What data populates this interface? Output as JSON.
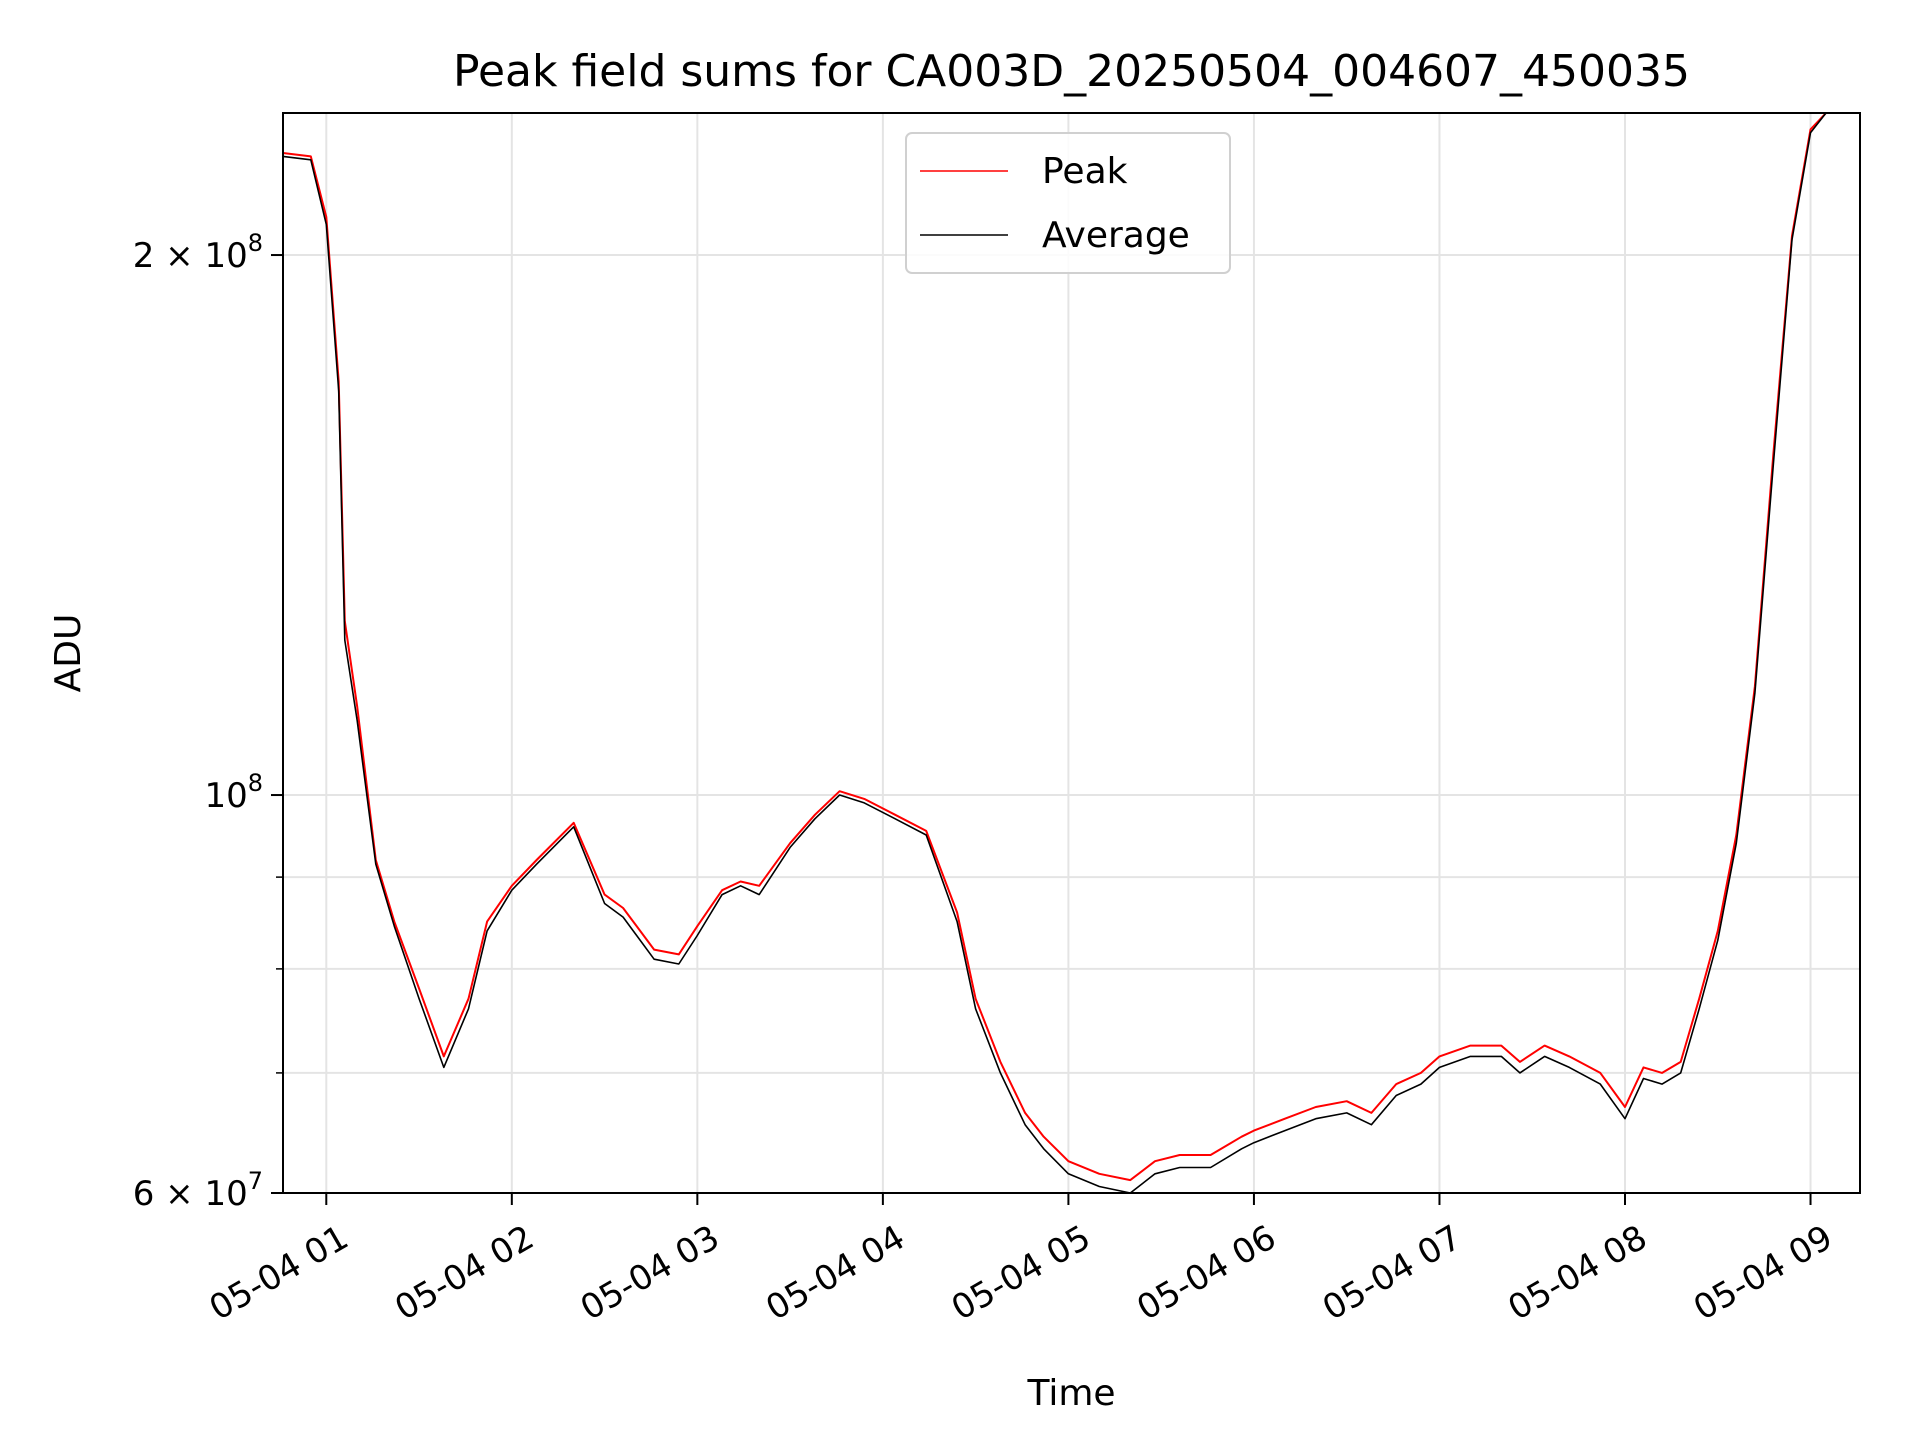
{
  "chart_data": {
    "type": "line",
    "title": "Peak field sums for CA003D_20250504_004607_450035",
    "xlabel": "Time",
    "ylabel": "ADU",
    "yscale": "log",
    "xlim": [
      "2025-05-04 00:46",
      "2025-05-04 09:16"
    ],
    "ylim": [
      60000000,
      240000000
    ],
    "grid": true,
    "legend_position": "upper center",
    "x_ticks": [
      {
        "value": "2025-05-04 01:00",
        "label": "05-04 01"
      },
      {
        "value": "2025-05-04 02:00",
        "label": "05-04 02"
      },
      {
        "value": "2025-05-04 03:00",
        "label": "05-04 03"
      },
      {
        "value": "2025-05-04 04:00",
        "label": "05-04 04"
      },
      {
        "value": "2025-05-04 05:00",
        "label": "05-04 05"
      },
      {
        "value": "2025-05-04 06:00",
        "label": "05-04 06"
      },
      {
        "value": "2025-05-04 07:00",
        "label": "05-04 07"
      },
      {
        "value": "2025-05-04 08:00",
        "label": "05-04 08"
      },
      {
        "value": "2025-05-04 09:00",
        "label": "05-04 09"
      }
    ],
    "y_ticks": [
      {
        "value": 60000000,
        "base": "6 × 10",
        "exp": "7"
      },
      {
        "value": 100000000,
        "base": "10",
        "exp": "8"
      },
      {
        "value": 200000000,
        "base": "2 × 10",
        "exp": "8"
      }
    ],
    "y_minor_ticks": [
      70000000,
      80000000,
      90000000
    ],
    "x": [
      "2025-05-04 00:46",
      "2025-05-04 00:55",
      "2025-05-04 01:00",
      "2025-05-04 01:04",
      "2025-05-04 01:06",
      "2025-05-04 01:10",
      "2025-05-04 01:16",
      "2025-05-04 01:22",
      "2025-05-04 01:30",
      "2025-05-04 01:38",
      "2025-05-04 01:46",
      "2025-05-04 01:52",
      "2025-05-04 02:00",
      "2025-05-04 02:08",
      "2025-05-04 02:20",
      "2025-05-04 02:30",
      "2025-05-04 02:36",
      "2025-05-04 02:46",
      "2025-05-04 02:54",
      "2025-05-04 03:00",
      "2025-05-04 03:08",
      "2025-05-04 03:14",
      "2025-05-04 03:20",
      "2025-05-04 03:30",
      "2025-05-04 03:38",
      "2025-05-04 03:46",
      "2025-05-04 03:54",
      "2025-05-04 04:04",
      "2025-05-04 04:14",
      "2025-05-04 04:24",
      "2025-05-04 04:30",
      "2025-05-04 04:38",
      "2025-05-04 04:46",
      "2025-05-04 04:52",
      "2025-05-04 05:00",
      "2025-05-04 05:10",
      "2025-05-04 05:20",
      "2025-05-04 05:28",
      "2025-05-04 05:36",
      "2025-05-04 05:46",
      "2025-05-04 05:56",
      "2025-05-04 06:00",
      "2025-05-04 06:10",
      "2025-05-04 06:20",
      "2025-05-04 06:30",
      "2025-05-04 06:38",
      "2025-05-04 06:46",
      "2025-05-04 06:54",
      "2025-05-04 07:00",
      "2025-05-04 07:10",
      "2025-05-04 07:20",
      "2025-05-04 07:26",
      "2025-05-04 07:34",
      "2025-05-04 07:42",
      "2025-05-04 07:52",
      "2025-05-04 08:00",
      "2025-05-04 08:06",
      "2025-05-04 08:12",
      "2025-05-04 08:18",
      "2025-05-04 08:24",
      "2025-05-04 08:30",
      "2025-05-04 08:36",
      "2025-05-04 08:42",
      "2025-05-04 08:48",
      "2025-05-04 08:54",
      "2025-05-04 09:00",
      "2025-05-04 09:05"
    ],
    "series": [
      {
        "name": "Peak",
        "color": "#ff0000",
        "values": [
          228000000,
          227000000,
          210000000,
          170000000,
          125000000,
          112000000,
          92000000,
          85000000,
          78000000,
          71500000,
          77000000,
          85000000,
          89000000,
          92000000,
          96500000,
          88000000,
          86500000,
          82000000,
          81500000,
          84500000,
          88500000,
          89500000,
          89000000,
          94000000,
          97500000,
          100500000,
          99500000,
          97500000,
          95500000,
          86000000,
          77000000,
          71000000,
          66500000,
          64500000,
          62500000,
          61500000,
          61000000,
          62500000,
          63000000,
          63000000,
          64500000,
          65000000,
          66000000,
          67000000,
          67500000,
          66500000,
          69000000,
          70000000,
          71500000,
          72500000,
          72500000,
          71000000,
          72500000,
          71500000,
          70000000,
          67000000,
          70500000,
          70000000,
          71000000,
          77000000,
          84000000,
          95000000,
          115000000,
          155000000,
          205000000,
          235000000,
          240000000
        ]
      },
      {
        "name": "Average",
        "color": "#000000",
        "values": [
          227000000,
          226000000,
          208000000,
          168000000,
          122000000,
          110000000,
          91500000,
          84500000,
          77000000,
          70500000,
          76000000,
          84000000,
          88500000,
          91500000,
          96000000,
          87000000,
          85500000,
          81000000,
          80500000,
          83500000,
          88000000,
          89000000,
          88000000,
          93500000,
          97000000,
          100000000,
          99000000,
          97000000,
          95000000,
          85000000,
          76000000,
          70000000,
          65500000,
          63500000,
          61500000,
          60500000,
          60000000,
          61500000,
          62000000,
          62000000,
          63500000,
          64000000,
          65000000,
          66000000,
          66500000,
          65500000,
          68000000,
          69000000,
          70500000,
          71500000,
          71500000,
          70000000,
          71500000,
          70500000,
          69000000,
          66000000,
          69500000,
          69000000,
          70000000,
          76000000,
          83000000,
          94000000,
          114000000,
          153000000,
          204000000,
          234000000,
          240000000
        ]
      }
    ]
  }
}
